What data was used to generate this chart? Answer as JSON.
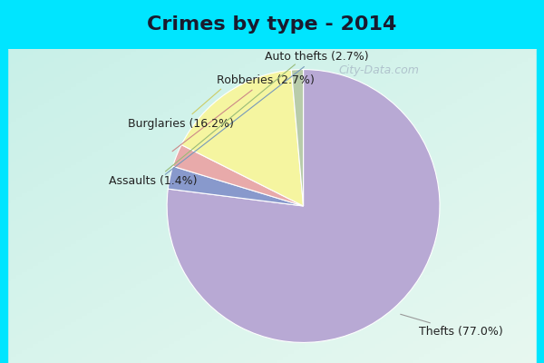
{
  "title": "Crimes by type - 2014",
  "title_fontsize": 16,
  "title_fontweight": "bold",
  "title_color": "#1a1a2e",
  "slices": [
    {
      "label": "Thefts (77.0%)",
      "value": 77.0,
      "color": "#b8a9d4"
    },
    {
      "label": "Auto thefts (2.7%)",
      "value": 2.7,
      "color": "#8899cc"
    },
    {
      "label": "Robberies (2.7%)",
      "value": 2.7,
      "color": "#e8aaaa"
    },
    {
      "label": "Burglaries (16.2%)",
      "value": 16.2,
      "color": "#f5f5a0"
    },
    {
      "label": "Assaults (1.4%)",
      "value": 1.4,
      "color": "#b8ccaa"
    }
  ],
  "bg_cyan": "#00e5ff",
  "bg_top_left": "#c8f0e8",
  "bg_bottom_right": "#e8f8f0",
  "watermark": "City-Data.com",
  "watermark_color": "#aabbc8",
  "startangle": 90,
  "title_bar_height": 0.135
}
